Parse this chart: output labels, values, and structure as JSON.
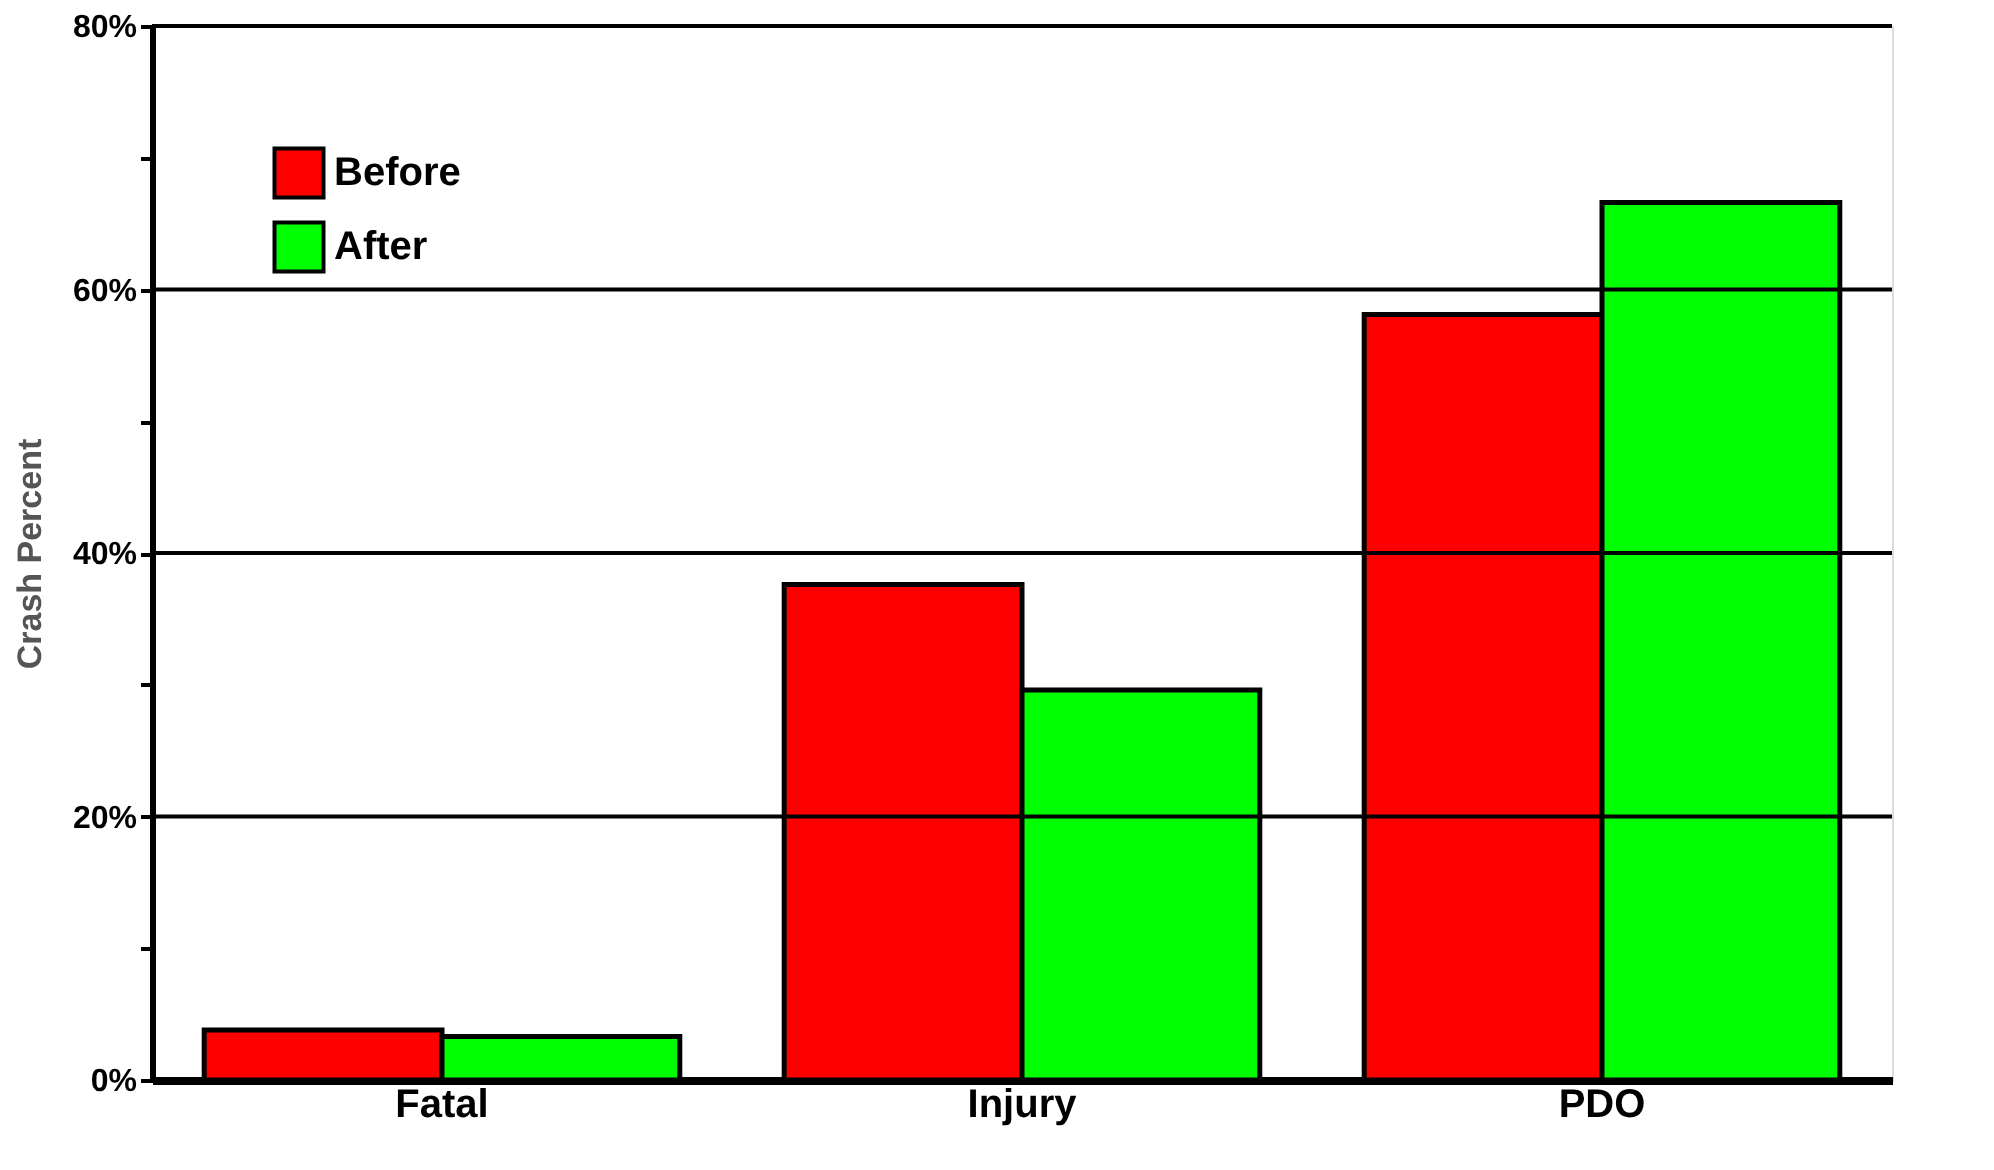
{
  "chart_data": {
    "type": "bar",
    "ylabel": "Crash Percent",
    "categories": [
      "Fatal",
      "Injury",
      "PDO"
    ],
    "series": [
      {
        "name": "Before",
        "color": "#ff0000",
        "values": [
          3.8,
          37.6,
          58.1
        ]
      },
      {
        "name": "After",
        "color": "#00ff00",
        "values": [
          3.3,
          29.6,
          66.6
        ]
      }
    ],
    "ylim": [
      0,
      80
    ],
    "yticks": [
      {
        "value": 0,
        "label": "0%"
      },
      {
        "value": 10,
        "label": null
      },
      {
        "value": 20,
        "label": "20%"
      },
      {
        "value": 30,
        "label": null
      },
      {
        "value": 40,
        "label": "40%"
      },
      {
        "value": 50,
        "label": null
      },
      {
        "value": 60,
        "label": "60%"
      },
      {
        "value": 70,
        "label": null
      },
      {
        "value": 80,
        "label": "80%"
      }
    ],
    "grid": "y",
    "legend": "top left"
  }
}
